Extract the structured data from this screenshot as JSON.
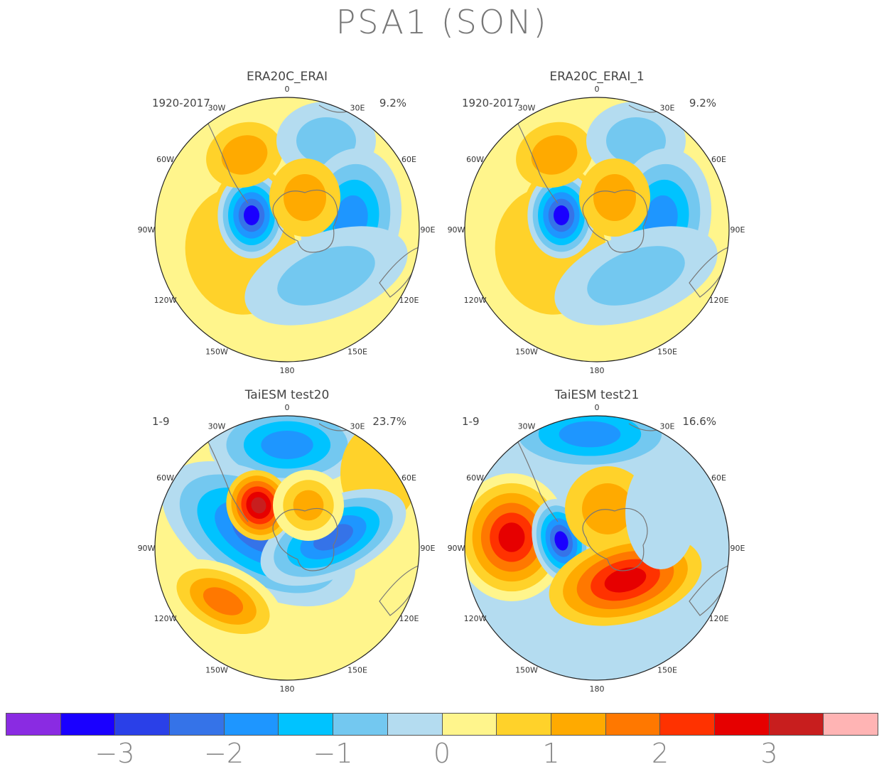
{
  "title": "PSA1 (SON)",
  "panels": [
    {
      "name": "ERA20C_ERAI",
      "years": "1920-2017",
      "pct": "9.2%",
      "lon_labels": {
        "n": "0",
        "w30": "30W",
        "e30": "30E",
        "w60": "60W",
        "e60": "60E",
        "w90": "90W",
        "e90": "90E",
        "w120": "120W",
        "e120": "120E",
        "w150": "150W",
        "e150": "150E",
        "s": "180"
      }
    },
    {
      "name": "ERA20C_ERAI_1",
      "years": "1920-2017",
      "pct": "9.2%",
      "lon_labels": {
        "n": "0",
        "w30": "30W",
        "e30": "30E",
        "w60": "60W",
        "e60": "60E",
        "w90": "90W",
        "e90": "90E",
        "w120": "120W",
        "e120": "120E",
        "w150": "150W",
        "e150": "150E",
        "s": "180"
      }
    },
    {
      "name": "TaiESM test20",
      "years": "1-9",
      "pct": "23.7%",
      "lon_labels": {
        "n": "0",
        "w30": "30W",
        "e30": "30E",
        "w60": "60W",
        "e60": "60E",
        "w90": "90W",
        "e90": "90E",
        "w120": "120W",
        "e120": "120E",
        "w150": "150W",
        "e150": "150E",
        "s": "180"
      }
    },
    {
      "name": "TaiESM test21",
      "years": "1-9",
      "pct": "16.6%",
      "lon_labels": {
        "n": "0",
        "w30": "30W",
        "e30": "30E",
        "w60": "60W",
        "e60": "60E",
        "w90": "90W",
        "e90": "90E",
        "w120": "120W",
        "e120": "120E",
        "w150": "150W",
        "e150": "150E",
        "s": "180"
      }
    }
  ],
  "colorbar": {
    "colors": [
      "#8a2be2",
      "#1a00ff",
      "#2a40e8",
      "#3573e8",
      "#1e96ff",
      "#00c3ff",
      "#73c8f0",
      "#b4dcf0",
      "#fff58c",
      "#ffd22a",
      "#ffaa00",
      "#ff7800",
      "#ff3200",
      "#e60000",
      "#c81e1e",
      "#ffb4b4"
    ],
    "ticks": [
      "−3",
      "−2",
      "−1",
      "0",
      "1",
      "2",
      "3"
    ]
  },
  "colors": {
    "neg3": "#1a00ff",
    "neg2": "#3573e8",
    "neg15": "#1e96ff",
    "neg1": "#00c3ff",
    "neg05": "#73c8f0",
    "neg0": "#b4dcf0",
    "pos0": "#fff58c",
    "pos05": "#ffd22a",
    "pos1": "#ffaa00",
    "pos15": "#ff7800",
    "pos2": "#ff3200",
    "pos25": "#e60000",
    "pos3": "#c81e1e",
    "coast": "#777777"
  }
}
